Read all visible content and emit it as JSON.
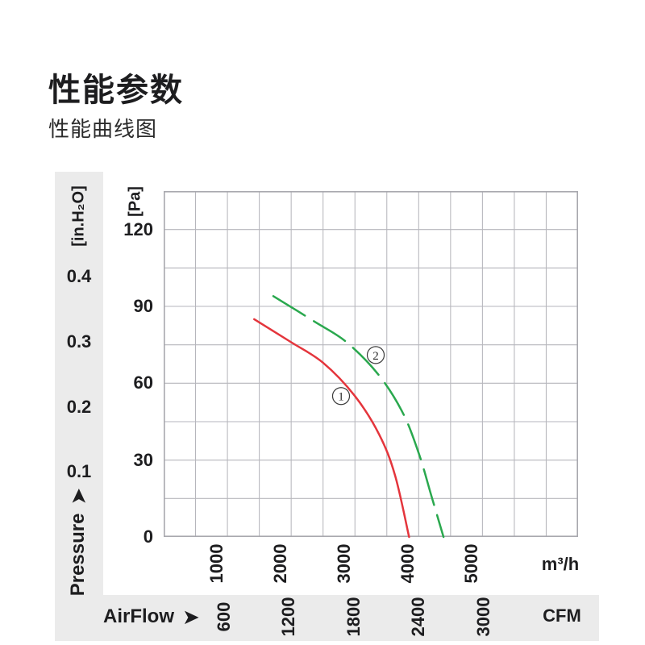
{
  "page": {
    "title": "性能参数",
    "subtitle": "性能曲线图"
  },
  "left_axis": {
    "unit_inh2o": "[in.H₂O]",
    "unit_pa": "[Pa]",
    "axis_label": "Pressure",
    "arrow": "➤"
  },
  "bottom_axis": {
    "unit_m3h": "m³/h",
    "unit_cfm": "CFM",
    "axis_label": "AirFlow",
    "arrow": "➤"
  },
  "chart_data": {
    "type": "line",
    "title": "性能曲线图",
    "x_axis": {
      "label": "AirFlow",
      "unit_primary": "m³/h",
      "unit_secondary": "CFM",
      "ticks_m3h": [
        1000,
        2000,
        3000,
        4000,
        5000
      ],
      "ticks_cfm": [
        600,
        1200,
        1800,
        2400,
        3000
      ],
      "xlim_m3h": [
        0,
        6500
      ],
      "cfm_to_m3h": 1.699
    },
    "y_axis": {
      "label": "Pressure",
      "unit_primary": "Pa",
      "unit_secondary": "in.H₂O",
      "ticks_pa": [
        120,
        90,
        60,
        30,
        0
      ],
      "ticks_inh2o": [
        0.4,
        0.3,
        0.2,
        0.1
      ],
      "ylim_pa": [
        0,
        135
      ],
      "inh2o_to_pa": 254
    },
    "grid": {
      "cols": 13,
      "rows": 9,
      "on": true,
      "line_color": "#b6b6bc",
      "border_color": "#a8a8ae"
    },
    "series": [
      {
        "name": "1",
        "color": "#e4353c",
        "style": "solid",
        "points_m3h_pa": [
          [
            1420,
            85
          ],
          [
            2000,
            76
          ],
          [
            2500,
            68
          ],
          [
            3000,
            55
          ],
          [
            3380,
            40
          ],
          [
            3630,
            24
          ],
          [
            3850,
            0
          ]
        ],
        "label_pos_m3h_pa": [
          2782,
          55
        ]
      },
      {
        "name": "2",
        "color": "#2aa84e",
        "style": "dashed",
        "points_m3h_pa": [
          [
            1720,
            94
          ],
          [
            2370,
            84
          ],
          [
            2870,
            76
          ],
          [
            3380,
            63
          ],
          [
            3760,
            48
          ],
          [
            4010,
            32
          ],
          [
            4200,
            16
          ],
          [
            4390,
            0
          ]
        ],
        "label_pos_m3h_pa": [
          3326,
          71
        ]
      }
    ],
    "curve_label_style": {
      "circle_stroke": "#3a3a3a",
      "circle_fill": "#ffffff",
      "text_color": "#2a2a2a"
    }
  }
}
